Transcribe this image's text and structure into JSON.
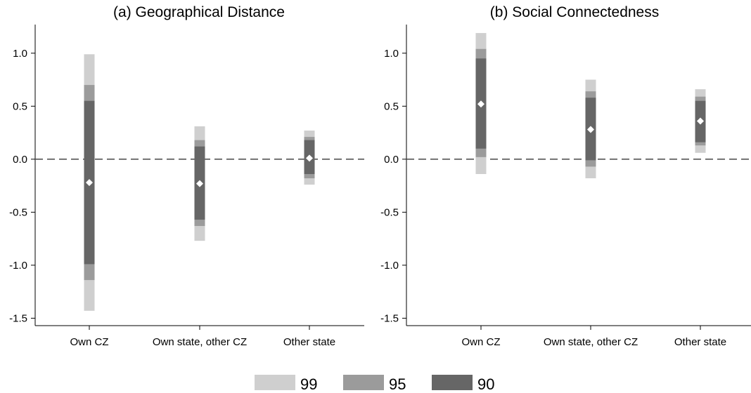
{
  "chart_data": [
    {
      "type": "interval",
      "title": "(a) Geographical Distance",
      "categories": [
        "Own CZ",
        "Own state, other CZ",
        "Other state"
      ],
      "y_ticks": [
        "1.0",
        "0.5",
        "0.0",
        "-0.5",
        "-1.0",
        "-1.5"
      ],
      "ylim": [
        -1.57,
        1.27
      ],
      "reference_line": 0.0,
      "points": [
        -0.22,
        -0.23,
        0.01
      ],
      "ci90": [
        [
          -0.99,
          0.55
        ],
        [
          -0.57,
          0.12
        ],
        [
          -0.14,
          0.18
        ]
      ],
      "ci95": [
        [
          -1.14,
          0.7
        ],
        [
          -0.63,
          0.18
        ],
        [
          -0.18,
          0.21
        ]
      ],
      "ci99": [
        [
          -1.43,
          0.99
        ],
        [
          -0.77,
          0.31
        ],
        [
          -0.24,
          0.27
        ]
      ]
    },
    {
      "type": "interval",
      "title": "(b) Social Connectedness",
      "categories": [
        "Own CZ",
        "Own state, other CZ",
        "Other state"
      ],
      "y_ticks": [
        "1.0",
        "0.5",
        "0.0",
        "-0.5",
        "-1.0",
        "-1.5"
      ],
      "ylim": [
        -1.57,
        1.27
      ],
      "reference_line": 0.0,
      "points": [
        0.52,
        0.28,
        0.36
      ],
      "ci90": [
        [
          0.1,
          0.95
        ],
        [
          -0.01,
          0.58
        ],
        [
          0.16,
          0.55
        ]
      ],
      "ci95": [
        [
          0.02,
          1.04
        ],
        [
          -0.07,
          0.64
        ],
        [
          0.13,
          0.59
        ]
      ],
      "ci99": [
        [
          -0.14,
          1.19
        ],
        [
          -0.18,
          0.75
        ],
        [
          0.06,
          0.66
        ]
      ]
    }
  ],
  "legend": {
    "position": "bottom",
    "items": [
      {
        "label": "99",
        "color": "#cfcfcf"
      },
      {
        "label": "95",
        "color": "#9b9b9b"
      },
      {
        "label": "90",
        "color": "#666666"
      }
    ]
  },
  "colors": {
    "ci99": "#cfcfcf",
    "ci95": "#9b9b9b",
    "ci90": "#666666",
    "point": "#ffffff",
    "reference_line": "#555555"
  }
}
